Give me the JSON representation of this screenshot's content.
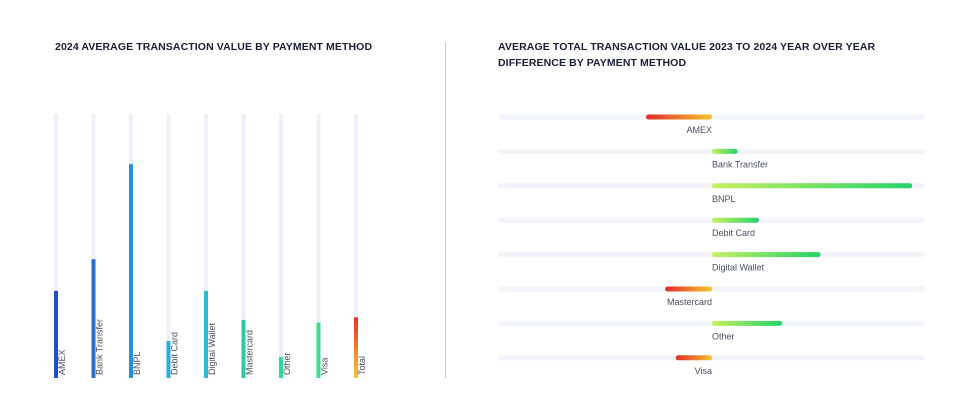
{
  "chart_data": [
    {
      "type": "bar",
      "orientation": "vertical",
      "title": "2024 AVERAGE TRANSACTION VALUE BY PAYMENT METHOD",
      "categories": [
        "AMEX",
        "Bank Transfer",
        "BNPL",
        "Debit Card",
        "Digital Wallet",
        "Mastercard",
        "Other",
        "Visa",
        "Total"
      ],
      "values": [
        0.33,
        0.45,
        0.81,
        0.14,
        0.33,
        0.22,
        0.08,
        0.21,
        0.23
      ],
      "value_note_scale": "relative (no axis printed)",
      "ylim": [
        0,
        1
      ],
      "colors": [
        "#1f4ec2",
        "#2a6fd8",
        "#2590e0",
        "#27aee2",
        "#26bdd0",
        "#2dc8a6",
        "#35d49a",
        "#3ddc88",
        [
          "#e8322a",
          "#f5c82e"
        ]
      ],
      "track_color": "#edf1f9",
      "grid": false,
      "legend": "none"
    },
    {
      "type": "bar",
      "orientation": "horizontal-diverging",
      "title": "AVERAGE TOTAL TRANSACTION VALUE 2023 TO 2024 YEAR OVER YEAR DIFFERENCE BY PAYMENT METHOD",
      "categories": [
        "AMEX",
        "Bank Transfer",
        "BNPL",
        "Debit Card",
        "Digital Wallet",
        "Mastercard",
        "Other",
        "Visa"
      ],
      "values": [
        -0.31,
        0.12,
        0.94,
        0.22,
        0.51,
        -0.22,
        0.33,
        -0.17
      ],
      "xlim": [
        -1,
        1
      ],
      "negative_gradient": [
        "#e32a2a",
        "#f6c52c"
      ],
      "positive_gradient": [
        "#c8f060",
        "#22d36a"
      ],
      "track_color": "#f1f4f9",
      "grid": false,
      "legend": "none"
    }
  ]
}
